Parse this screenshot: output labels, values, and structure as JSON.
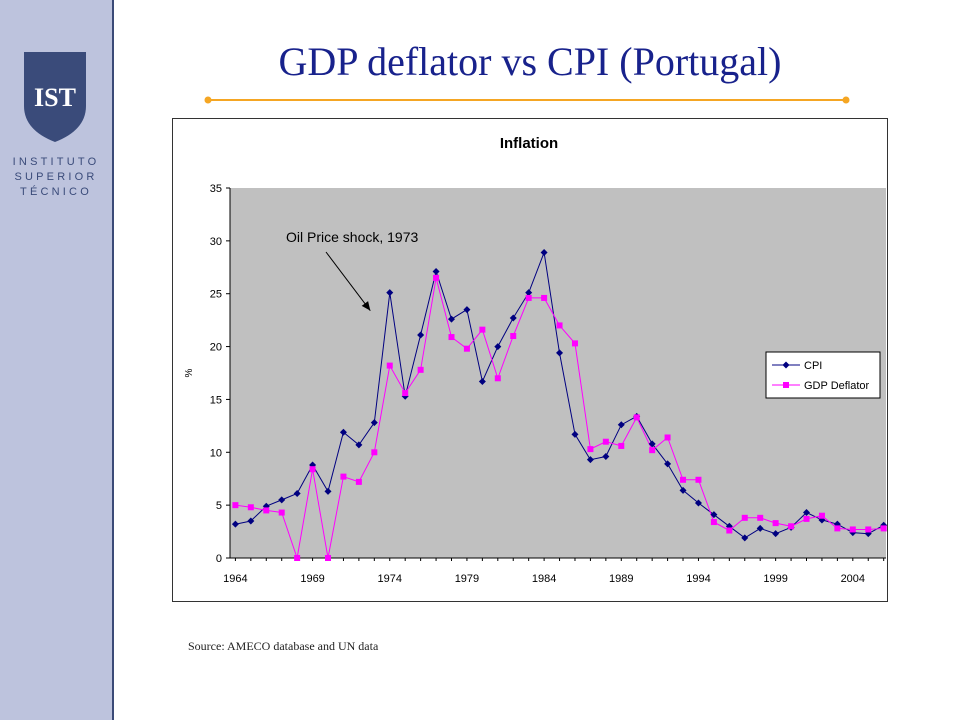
{
  "slide": {
    "title": "GDP deflator vs CPI (Portugal)",
    "source": "Source: AMECO database and UN data"
  },
  "sidebar": {
    "logo_text": "IST",
    "institution_lines": [
      "INSTITUTO",
      "SUPERIOR",
      "TÉCNICO"
    ]
  },
  "colors": {
    "sidebar": "#bdc3dd",
    "title": "#18228c",
    "accent_line": "#f5a623",
    "plot_area": "#c0c0c0",
    "cpi": "#000080",
    "gdp_deflator": "#ff00ff"
  },
  "chart_data": {
    "type": "line",
    "title": "Inflation",
    "xlabel": "",
    "ylabel": "%",
    "x": [
      1964,
      1965,
      1966,
      1967,
      1968,
      1969,
      1970,
      1971,
      1972,
      1973,
      1974,
      1975,
      1976,
      1977,
      1978,
      1979,
      1980,
      1981,
      1982,
      1983,
      1984,
      1985,
      1986,
      1987,
      1988,
      1989,
      1990,
      1991,
      1992,
      1993,
      1994,
      1995,
      1996,
      1997,
      1998,
      1999,
      2000,
      2001,
      2002,
      2003,
      2004,
      2005,
      2006
    ],
    "xticks": [
      "1964",
      "1969",
      "1974",
      "1979",
      "1984",
      "1989",
      "1994",
      "1999",
      "2004"
    ],
    "yticks": [
      "0",
      "5",
      "10",
      "15",
      "20",
      "25",
      "30",
      "35"
    ],
    "ylim": [
      0,
      35
    ],
    "grid": false,
    "legend_position": "right",
    "series": [
      {
        "name": "CPI",
        "marker": "diamond",
        "values": [
          3.2,
          3.5,
          4.9,
          5.5,
          6.1,
          8.8,
          6.3,
          11.9,
          10.7,
          12.8,
          25.1,
          15.3,
          21.1,
          27.1,
          22.6,
          23.5,
          16.7,
          20.0,
          22.7,
          25.1,
          28.9,
          19.4,
          11.7,
          9.3,
          9.6,
          12.6,
          13.4,
          10.8,
          8.9,
          6.4,
          5.2,
          4.1,
          3.0,
          1.9,
          2.8,
          2.3,
          2.9,
          4.3,
          3.6,
          3.2,
          2.4,
          2.3,
          3.1
        ]
      },
      {
        "name": "GDP Deflator",
        "marker": "square",
        "values": [
          5.0,
          4.8,
          4.5,
          4.3,
          0.0,
          8.4,
          0.0,
          7.7,
          7.2,
          10.0,
          18.2,
          15.6,
          17.8,
          26.5,
          20.9,
          19.8,
          21.6,
          17.0,
          21.0,
          24.6,
          24.6,
          22.0,
          20.3,
          10.3,
          11.0,
          10.6,
          13.3,
          10.2,
          11.4,
          7.4,
          7.4,
          3.4,
          2.6,
          3.8,
          3.8,
          3.3,
          3.0,
          3.7,
          4.0,
          2.8,
          2.7,
          2.7,
          2.8
        ]
      }
    ],
    "annotations": [
      {
        "text": "Oil Price shock, 1973",
        "x": 1973,
        "y": 25.1
      }
    ]
  }
}
